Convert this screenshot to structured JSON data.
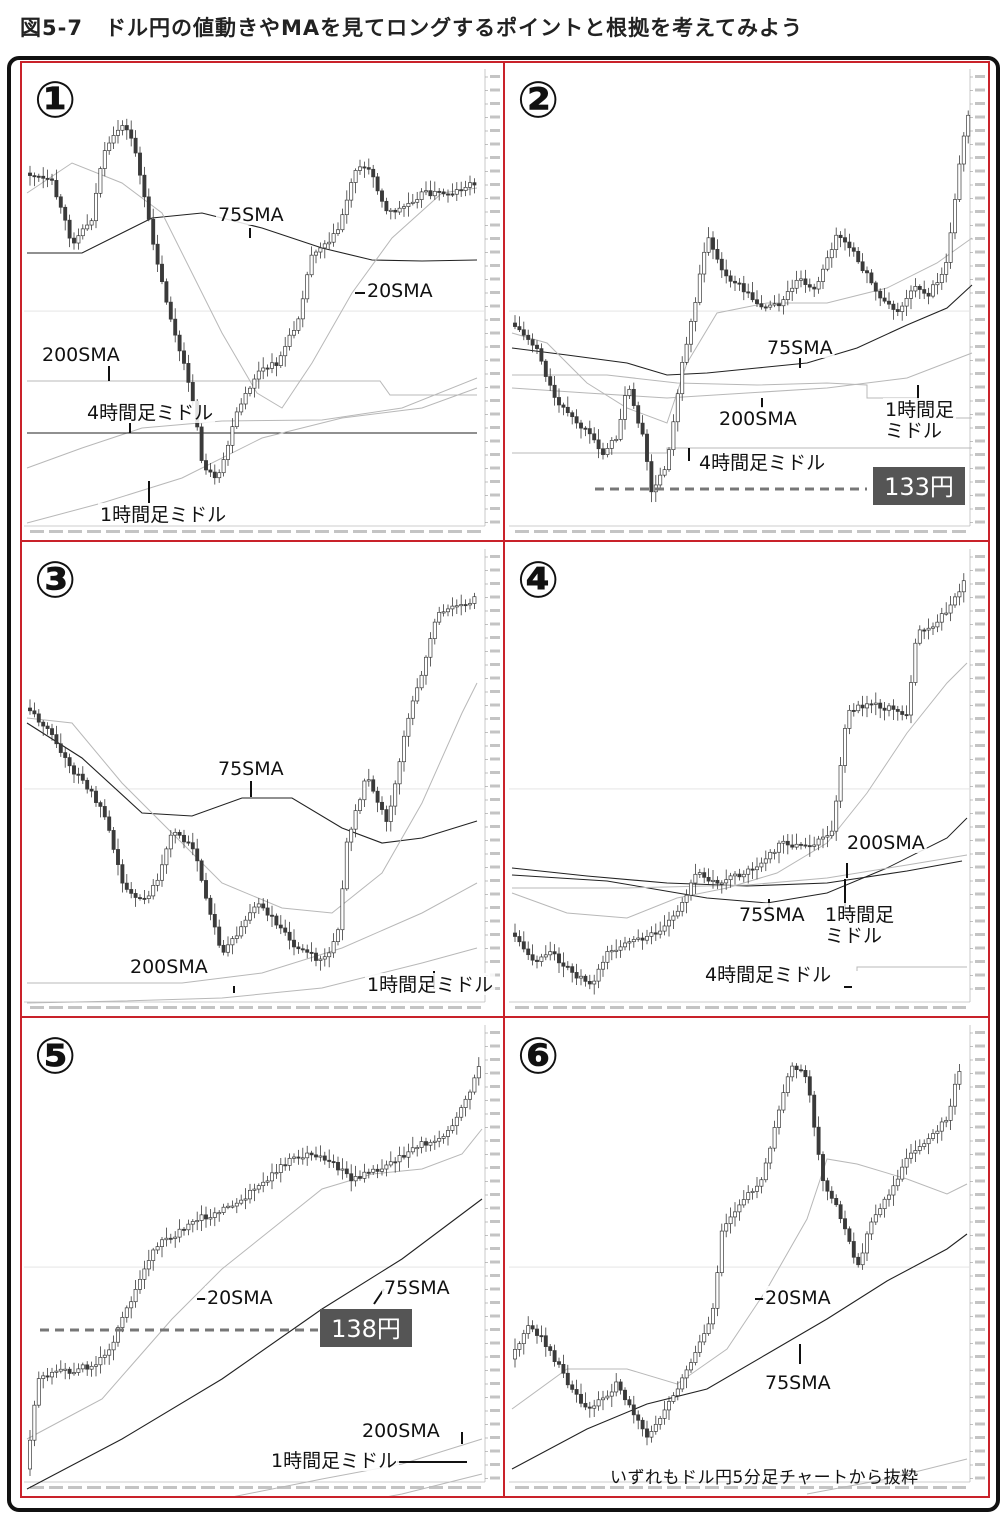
{
  "figure_title": "図5-7　ドル円の値動きやMAを見てロングするポイントと根拠を考えてみよう",
  "credit": "いずれもドル円5分足チャートから抜粋",
  "colors": {
    "border": "#c9222a",
    "candle": "#3a3a3a",
    "sma": "#222222",
    "light_line": "#b8b8b8",
    "price_box": "#555555"
  },
  "chart_data": [
    {
      "type": "line",
      "panel_label": "①",
      "title": "",
      "annotations": [
        "75SMA",
        "20SMA",
        "4時間足ミドル",
        "200SMA",
        "1時間足ミドル"
      ],
      "series": [
        {
          "name": "75SMA"
        },
        {
          "name": "20SMA"
        },
        {
          "name": "200SMA"
        },
        {
          "name": "4時間足ミドル"
        },
        {
          "name": "1時間足ミドル"
        }
      ]
    },
    {
      "type": "line",
      "panel_label": "②",
      "title": "",
      "annotations": [
        "75SMA",
        "200SMA",
        "1時間足ミドル",
        "4時間足ミドル"
      ],
      "price_label": "133円",
      "series": [
        {
          "name": "75SMA"
        },
        {
          "name": "200SMA"
        },
        {
          "name": "1時間足ミドル"
        },
        {
          "name": "4時間足ミドル"
        }
      ]
    },
    {
      "type": "line",
      "panel_label": "③",
      "title": "",
      "annotations": [
        "75SMA",
        "200SMA",
        "1時間足ミドル"
      ],
      "series": [
        {
          "name": "75SMA"
        },
        {
          "name": "200SMA"
        },
        {
          "name": "1時間足ミドル"
        }
      ]
    },
    {
      "type": "line",
      "panel_label": "④",
      "title": "",
      "annotations": [
        "200SMA",
        "75SMA",
        "1時間足ミドル",
        "4時間足ミドル"
      ],
      "series": [
        {
          "name": "200SMA"
        },
        {
          "name": "75SMA"
        },
        {
          "name": "1時間足ミドル"
        },
        {
          "name": "4時間足ミドル"
        }
      ]
    },
    {
      "type": "line",
      "panel_label": "⑤",
      "title": "",
      "annotations": [
        "20SMA",
        "75SMA",
        "200SMA",
        "1時間足ミドル"
      ],
      "price_label": "138円",
      "series": [
        {
          "name": "20SMA"
        },
        {
          "name": "75SMA"
        },
        {
          "name": "200SMA"
        },
        {
          "name": "1時間足ミドル"
        }
      ]
    },
    {
      "type": "line",
      "panel_label": "⑥",
      "title": "",
      "annotations": [
        "20SMA",
        "75SMA"
      ],
      "series": [
        {
          "name": "20SMA"
        },
        {
          "name": "75SMA"
        }
      ]
    }
  ]
}
